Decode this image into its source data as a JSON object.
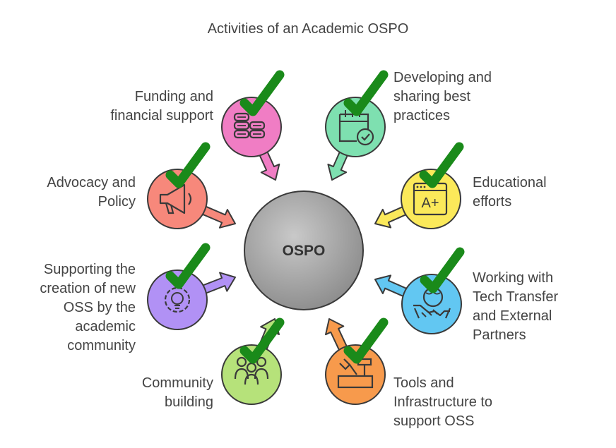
{
  "title": "Activities of an Academic OSPO",
  "center": {
    "label": "OSPO"
  },
  "activities": [
    {
      "id": "funding",
      "label": "Funding and\nfinancial support",
      "color": "#f07dc4",
      "icon": "coins-icon"
    },
    {
      "id": "best-practices",
      "label": "Developing and\nsharing best\npractices",
      "color": "#7ee0b0",
      "icon": "calendar-check-icon"
    },
    {
      "id": "education",
      "label": "Educational\nefforts",
      "color": "#fbe95a",
      "icon": "grade-a-plus-icon"
    },
    {
      "id": "tech-transfer",
      "label": "Working with\nTech Transfer\nand External\nPartners",
      "color": "#62c7f2",
      "icon": "handshake-globe-icon"
    },
    {
      "id": "tools",
      "label": "Tools and\nInfrastructure to\nsupport OSS",
      "color": "#f79a4c",
      "icon": "toolbox-icon"
    },
    {
      "id": "community",
      "label": "Community\nbuilding",
      "color": "#b6e27a",
      "icon": "people-group-icon"
    },
    {
      "id": "new-oss",
      "label": "Supporting the\ncreation of new\nOSS by the\nacademic\ncommunity",
      "color": "#b191f5",
      "icon": "gear-bulb-icon"
    },
    {
      "id": "advocacy",
      "label": "Advocacy and\nPolicy",
      "color": "#f7887b",
      "icon": "megaphone-icon"
    }
  ],
  "colors": {
    "check": "#1a8a1a",
    "center_fill": "#a8a8a8",
    "outline": "#3a3a3a",
    "text": "#444444"
  }
}
